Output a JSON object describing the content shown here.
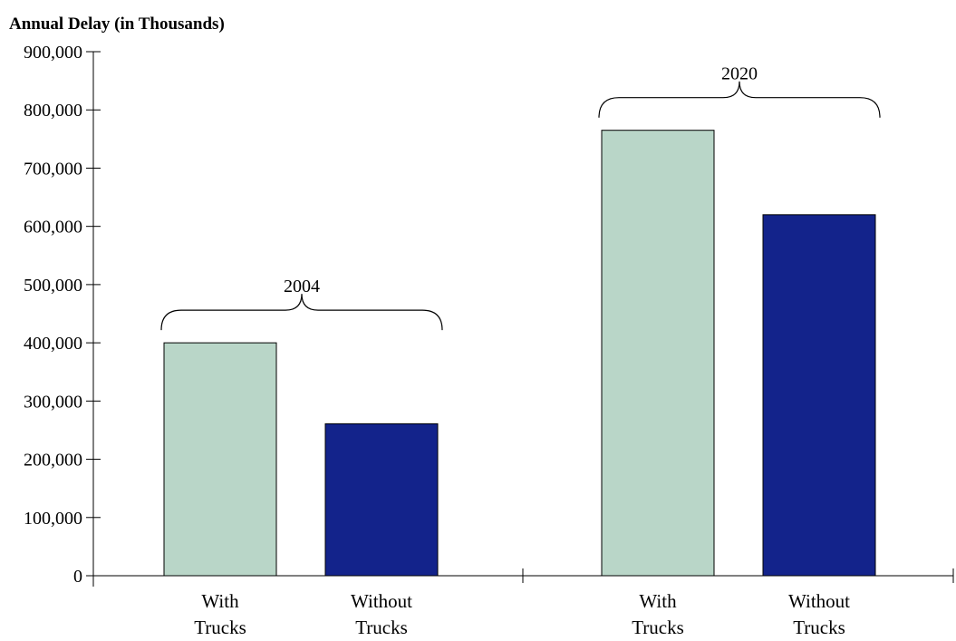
{
  "chart_data": {
    "type": "bar",
    "title": "",
    "ylabel": "Annual Delay (in Thousands)",
    "xlabel": "",
    "ylim": [
      0,
      900000
    ],
    "yticks": [
      "0",
      "100,000",
      "200,000",
      "300,000",
      "400,000",
      "500,000",
      "600,000",
      "700,000",
      "800,000",
      "900,000"
    ],
    "grid": false,
    "legend": "none",
    "groups": [
      {
        "name": "2004",
        "bars": [
          {
            "category": [
              "With",
              "Trucks"
            ],
            "value": 400000,
            "color": "#b9d6c8"
          },
          {
            "category": [
              "Without",
              "Trucks"
            ],
            "value": 261000,
            "color": "#13238b"
          }
        ]
      },
      {
        "name": "2020",
        "bars": [
          {
            "category": [
              "With",
              "Trucks"
            ],
            "value": 765000,
            "color": "#b9d6c8"
          },
          {
            "category": [
              "Without",
              "Trucks"
            ],
            "value": 620000,
            "color": "#13238b"
          }
        ]
      }
    ]
  }
}
